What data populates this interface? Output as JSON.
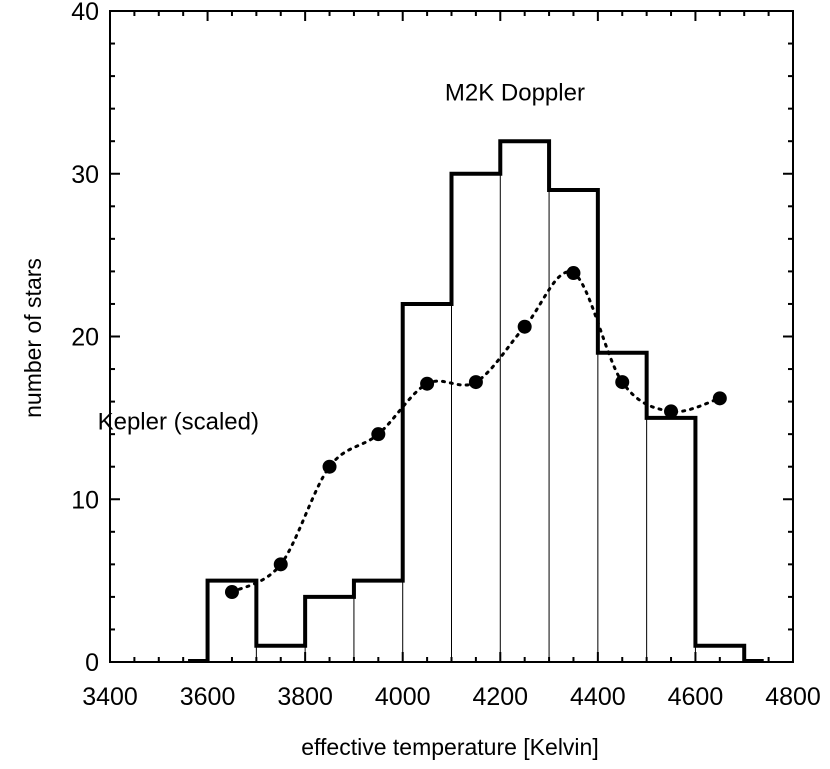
{
  "chart_data": {
    "type": "bar",
    "xlabel": "effective temperature [Kelvin]",
    "ylabel": "number of stars",
    "xlim": [
      3400,
      4800
    ],
    "ylim": [
      0,
      40
    ],
    "x_ticks": [
      3400,
      3600,
      3800,
      4000,
      4200,
      4400,
      4600,
      4800
    ],
    "y_ticks": [
      0,
      10,
      20,
      30,
      40
    ],
    "grid": false,
    "histogram": {
      "name": "M2K Doppler",
      "bin_edges": [
        3600,
        3700,
        3800,
        3900,
        4000,
        4100,
        4200,
        4300,
        4400,
        4500,
        4600,
        4700
      ],
      "counts": [
        5,
        1,
        4,
        5,
        22,
        30,
        32,
        29,
        19,
        15,
        1
      ]
    },
    "series": [
      {
        "name": "Kepler (scaled)",
        "style": "dotted line with filled circles",
        "x": [
          3650,
          3750,
          3850,
          3950,
          4050,
          4150,
          4250,
          4350,
          4450,
          4550,
          4650
        ],
        "values": [
          4.3,
          6,
          12,
          14,
          17.1,
          17.2,
          20.6,
          23.9,
          17.2,
          15.4,
          16.2
        ]
      }
    ],
    "annotations": [
      {
        "text": "M2K Doppler",
        "x": 4230,
        "y": 34.5
      },
      {
        "text": "Kepler (scaled)",
        "x": 3540,
        "y": 14.3
      }
    ]
  }
}
